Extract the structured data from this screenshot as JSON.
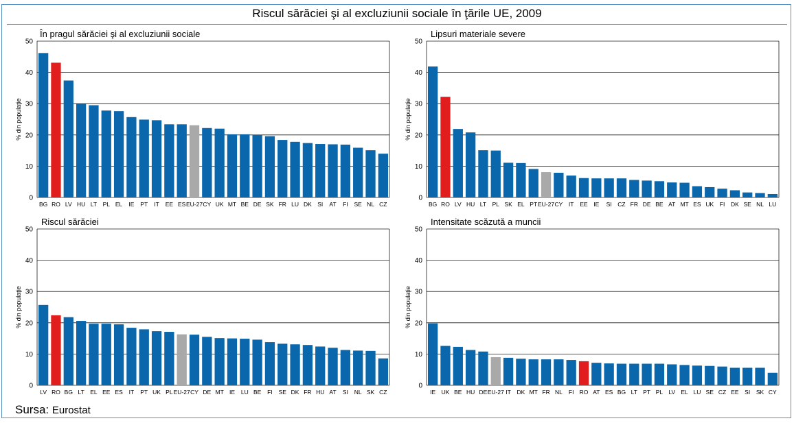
{
  "title": "Riscul sărăciei şi al excluziunii sociale în ţările UE, 2009",
  "source": {
    "label": "Sursa:",
    "value": "Eurostat"
  },
  "colors": {
    "bar": "#0a67ac",
    "romania": "#e11d1d",
    "eu27": "#a9a9a9",
    "grid": "#1a1a1a",
    "frame": "#4f8fc0"
  },
  "chart_data": [
    {
      "type": "bar",
      "title": "În pragul sărăciei şi al excluziunii sociale",
      "ylabel": "% din populaţie",
      "ylim": [
        0,
        50
      ],
      "yticks": [
        "0",
        "10",
        "20",
        "30",
        "40",
        "50"
      ],
      "grid": true,
      "categories": [
        "BG",
        "RO",
        "LV",
        "HU",
        "LT",
        "PL",
        "EL",
        "IE",
        "PT",
        "IT",
        "EE",
        "ES",
        "EU-27",
        "CY",
        "UK",
        "MT",
        "BE",
        "DE",
        "SK",
        "FR",
        "LU",
        "DK",
        "SI",
        "AT",
        "FI",
        "SE",
        "NL",
        "CZ"
      ],
      "values": [
        46.2,
        43.1,
        37.4,
        29.9,
        29.5,
        27.8,
        27.6,
        25.7,
        24.9,
        24.7,
        23.4,
        23.4,
        23.1,
        22.2,
        22.0,
        20.2,
        20.2,
        20.0,
        19.6,
        18.4,
        17.8,
        17.4,
        17.1,
        17.0,
        16.9,
        15.9,
        15.1,
        14.0
      ]
    },
    {
      "type": "bar",
      "title": "Lipsuri materiale severe",
      "ylabel": "% din populaţie",
      "ylim": [
        0,
        50
      ],
      "yticks": [
        "0",
        "10",
        "20",
        "30",
        "40",
        "50"
      ],
      "grid": true,
      "categories": [
        "BG",
        "RO",
        "LV",
        "HU",
        "LT",
        "PL",
        "SK",
        "EL",
        "PT",
        "EU-27",
        "CY",
        "IT",
        "EE",
        "IE",
        "SI",
        "CZ",
        "FR",
        "DE",
        "BE",
        "AT",
        "MT",
        "ES",
        "UK",
        "FI",
        "DK",
        "SE",
        "NL",
        "LU"
      ],
      "values": [
        41.9,
        32.2,
        21.9,
        20.8,
        15.1,
        15.0,
        11.1,
        11.0,
        9.1,
        8.1,
        7.9,
        7.0,
        6.2,
        6.1,
        6.1,
        6.1,
        5.6,
        5.4,
        5.2,
        4.8,
        4.7,
        3.6,
        3.3,
        2.8,
        2.3,
        1.6,
        1.4,
        1.1
      ]
    },
    {
      "type": "bar",
      "title": "Riscul sărăciei",
      "ylabel": "% din populaţie",
      "ylim": [
        0,
        50
      ],
      "yticks": [
        "0",
        "10",
        "20",
        "30",
        "40",
        "50"
      ],
      "grid": true,
      "categories": [
        "LV",
        "RO",
        "BG",
        "LT",
        "EL",
        "EE",
        "ES",
        "IT",
        "PT",
        "UK",
        "PL",
        "EU-27",
        "CY",
        "DE",
        "MT",
        "IE",
        "LU",
        "BE",
        "FI",
        "SE",
        "DK",
        "FR",
        "HU",
        "AT",
        "SI",
        "NL",
        "SK",
        "CZ"
      ],
      "values": [
        25.7,
        22.4,
        21.8,
        20.6,
        19.7,
        19.7,
        19.5,
        18.4,
        17.9,
        17.3,
        17.1,
        16.3,
        16.2,
        15.5,
        15.1,
        15.0,
        14.9,
        14.6,
        13.8,
        13.3,
        13.1,
        12.9,
        12.4,
        12.0,
        11.3,
        11.1,
        11.0,
        8.6
      ]
    },
    {
      "type": "bar",
      "title": "Intensitate scăzută a muncii",
      "ylabel": "% din populaţie",
      "ylim": [
        0,
        50
      ],
      "yticks": [
        "0",
        "10",
        "20",
        "30",
        "40",
        "50"
      ],
      "grid": true,
      "categories": [
        "IE",
        "UK",
        "BE",
        "HU",
        "DE",
        "EU-27",
        "IT",
        "DK",
        "MT",
        "FR",
        "NL",
        "FI",
        "RO",
        "AT",
        "ES",
        "BG",
        "LT",
        "PT",
        "PL",
        "LV",
        "EL",
        "LU",
        "SE",
        "CZ",
        "EE",
        "SI",
        "SK",
        "CY"
      ],
      "values": [
        19.8,
        12.6,
        12.3,
        11.3,
        10.8,
        9.0,
        8.8,
        8.5,
        8.3,
        8.3,
        8.3,
        8.1,
        7.7,
        7.2,
        7.0,
        6.9,
        6.9,
        6.9,
        6.9,
        6.7,
        6.5,
        6.3,
        6.2,
        6.0,
        5.6,
        5.6,
        5.6,
        4.0
      ]
    }
  ]
}
